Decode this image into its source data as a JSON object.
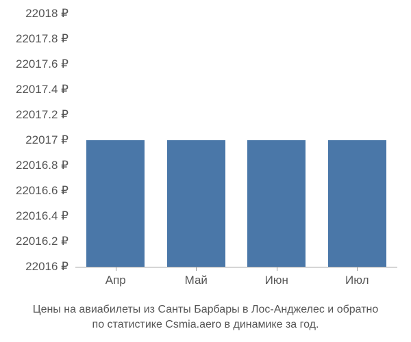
{
  "chart": {
    "type": "bar",
    "categories": [
      "Апр",
      "Май",
      "Июн",
      "Июл"
    ],
    "values": [
      22017,
      22017,
      22017,
      22017
    ],
    "bar_color": "#4a77a8",
    "ylim": [
      22016,
      22018
    ],
    "ytick_step": 0.2,
    "ytick_labels": [
      "22016 ₽",
      "22016.2 ₽",
      "22016.4 ₽",
      "22016.6 ₽",
      "22016.8 ₽",
      "22017 ₽",
      "22017.2 ₽",
      "22017.4 ₽",
      "22017.6 ₽",
      "22017.8 ₽",
      "22018 ₽"
    ],
    "background_color": "#ffffff",
    "axis_color": "#999999",
    "label_color": "#555555",
    "label_fontsize": 17,
    "bar_width": 0.72,
    "caption_line1": "Цены на авиабилеты из Санты Барбары в Лос-Анджелес и обратно",
    "caption_line2": "по статистике Csmia.aero в динамике за год."
  }
}
